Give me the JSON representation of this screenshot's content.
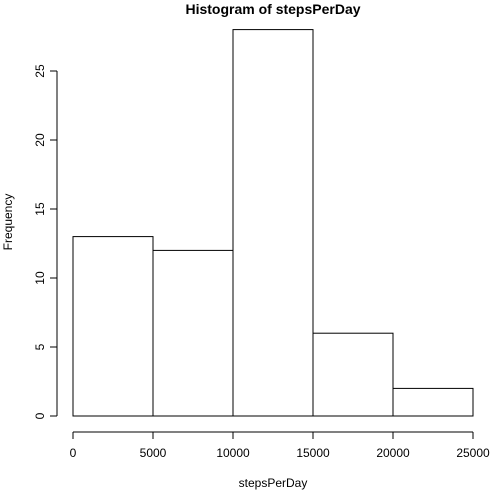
{
  "chart_data": {
    "type": "bar",
    "title": "Histogram of stepsPerDay",
    "xlabel": "stepsPerDay",
    "ylabel": "Frequency",
    "bins": [
      {
        "from": 0,
        "to": 5000,
        "count": 13
      },
      {
        "from": 5000,
        "to": 10000,
        "count": 12
      },
      {
        "from": 10000,
        "to": 15000,
        "count": 28
      },
      {
        "from": 15000,
        "to": 20000,
        "count": 6
      },
      {
        "from": 20000,
        "to": 25000,
        "count": 2
      }
    ],
    "xlim": [
      0,
      25000
    ],
    "ylim": [
      0,
      28
    ],
    "x_ticks": [
      0,
      5000,
      10000,
      15000,
      20000,
      25000
    ],
    "y_ticks": [
      0,
      5,
      10,
      15,
      20,
      25
    ],
    "grid": false
  }
}
